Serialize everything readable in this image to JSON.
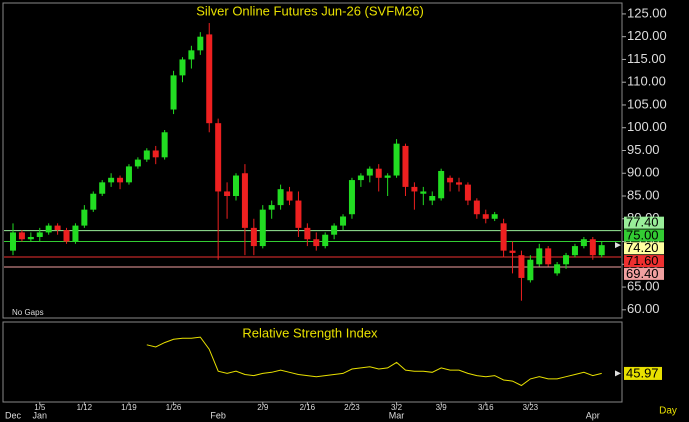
{
  "chart_data": {
    "type": "candlestick",
    "title": "Silver Online Futures Jun-26 (SVFM26)",
    "annotation": "No Gaps",
    "x_unit": "Day",
    "categories": [
      null,
      null,
      null,
      "1/5",
      null,
      null,
      null,
      null,
      "1/12",
      null,
      null,
      null,
      null,
      "1/19",
      null,
      null,
      null,
      null,
      "1/26",
      null,
      null,
      null,
      null,
      null,
      null,
      null,
      null,
      null,
      "2/9",
      null,
      null,
      null,
      null,
      "2/16",
      null,
      null,
      null,
      null,
      "2/23",
      null,
      null,
      null,
      null,
      "3/2",
      null,
      null,
      null,
      null,
      "3/9",
      null,
      null,
      null,
      null,
      "3/16",
      null,
      null,
      null,
      null,
      "3/23",
      null,
      null,
      null,
      null,
      null,
      null,
      null,
      null
    ],
    "months": [
      "Dec",
      null,
      null,
      "Jan",
      null,
      null,
      null,
      null,
      null,
      null,
      null,
      null,
      null,
      null,
      null,
      null,
      null,
      null,
      null,
      null,
      null,
      null,
      null,
      "Feb",
      null,
      null,
      null,
      null,
      null,
      null,
      null,
      null,
      null,
      null,
      null,
      null,
      null,
      null,
      null,
      null,
      null,
      null,
      null,
      "Mar",
      null,
      null,
      null,
      null,
      null,
      null,
      null,
      null,
      null,
      null,
      null,
      null,
      null,
      null,
      null,
      null,
      null,
      null,
      null,
      null,
      null,
      "Apr",
      null
    ],
    "open": [
      73,
      77,
      75.5,
      76,
      77,
      78.5,
      77.5,
      75,
      78.5,
      82,
      85.5,
      88,
      89,
      88,
      91.5,
      93,
      95,
      93.5,
      104,
      111.5,
      115,
      117,
      120.5,
      101,
      86,
      85,
      90,
      78,
      74,
      82,
      83,
      86,
      84,
      78,
      75.5,
      74,
      76.5,
      78.5,
      81,
      88.5,
      89.5,
      91,
      89,
      89.5,
      96,
      87,
      85.5,
      84,
      84.5,
      89,
      88,
      87.5,
      84,
      81,
      80,
      79,
      73,
      72,
      66.5,
      70,
      73.5,
      68,
      70,
      72,
      74,
      75.5,
      72
    ],
    "high": [
      79,
      77.5,
      77,
      78,
      79,
      79,
      78,
      79,
      83,
      86,
      88.5,
      90,
      89.5,
      92,
      93.5,
      95.5,
      96,
      99.5,
      112.5,
      115.5,
      118,
      121,
      123,
      102,
      88,
      90,
      92,
      80,
      83,
      84,
      87.5,
      87,
      86,
      79,
      77,
      77,
      79,
      81,
      89,
      90,
      91.5,
      92,
      90,
      97.5,
      96.5,
      88,
      87,
      86,
      91,
      89.5,
      89,
      88,
      84.5,
      82,
      81.5,
      80,
      75,
      73,
      72,
      74.5,
      74,
      70.5,
      72.5,
      74.5,
      76,
      76,
      75
    ],
    "low": [
      72,
      75,
      75,
      75,
      76.5,
      76.5,
      74.5,
      74.5,
      78,
      81.5,
      85,
      87,
      86.5,
      87.5,
      91,
      92.5,
      92,
      93,
      103,
      110,
      113,
      116,
      99,
      71,
      80,
      84,
      72,
      72,
      73.5,
      80,
      82,
      83,
      76,
      74,
      73,
      73.5,
      75.5,
      77.5,
      80,
      87,
      88,
      86,
      85,
      89,
      85,
      82,
      83,
      83,
      84,
      86,
      86,
      83,
      80,
      79,
      79.5,
      71.5,
      68,
      62,
      66,
      69.5,
      69.5,
      67.5,
      69,
      71.5,
      73.5,
      71,
      71.5
    ],
    "close": [
      77,
      75.5,
      76,
      77,
      78.5,
      77.5,
      75,
      78.5,
      82,
      85.5,
      88,
      89,
      88,
      91.5,
      93,
      95,
      93.5,
      99,
      111.5,
      115,
      117,
      120,
      101,
      86,
      85,
      89.5,
      78,
      74,
      82,
      83,
      86.5,
      84,
      78,
      75.5,
      74,
      76.5,
      78.5,
      80.5,
      88.5,
      89.5,
      91,
      89,
      89.5,
      96.5,
      87,
      86,
      86,
      85,
      90.5,
      88,
      87.5,
      84,
      81,
      80,
      81,
      73,
      72.5,
      67,
      71,
      73.5,
      70,
      70,
      72,
      74,
      75.5,
      72,
      74.2
    ],
    "up_color": "#22dd22",
    "down_color": "#ee2020",
    "ylim": [
      58.2,
      127.4
    ],
    "yticks": [
      {
        "value": 60,
        "label": "60.00"
      },
      {
        "value": 65,
        "label": "65.00"
      },
      {
        "value": 70,
        "label": "70.00"
      },
      {
        "value": 75,
        "label": "75.00"
      },
      {
        "value": 80,
        "label": "80.00"
      },
      {
        "value": 85,
        "label": "85.00"
      },
      {
        "value": 90,
        "label": "90.00"
      },
      {
        "value": 95,
        "label": "95.00"
      },
      {
        "value": 100,
        "label": "100.00"
      },
      {
        "value": 105,
        "label": "105.00"
      },
      {
        "value": 110,
        "label": "110.00"
      },
      {
        "value": 115,
        "label": "115.00"
      },
      {
        "value": 120,
        "label": "120.00"
      },
      {
        "value": 125,
        "label": "125.00"
      }
    ],
    "levels": [
      {
        "value": 77.4,
        "label": "77.40",
        "color": "#99ee99"
      },
      {
        "value": 75,
        "label": "75.00",
        "color": "#33cc33"
      },
      {
        "value": 71.6,
        "label": "71.60",
        "color": "#ee3030"
      },
      {
        "value": 69.4,
        "label": "69.40",
        "color": "#f0a0a0"
      }
    ],
    "last": {
      "value": 74.2,
      "label": "74.20",
      "color": "#ffffa0"
    },
    "indicator": {
      "title": "Relative Strength Index",
      "color": "#e8e000",
      "ylim": [
        20,
        90
      ],
      "values": [
        null,
        null,
        null,
        null,
        null,
        null,
        null,
        null,
        null,
        null,
        null,
        null,
        null,
        null,
        null,
        72,
        70,
        74,
        77,
        78,
        78,
        79,
        68,
        48,
        46,
        48,
        45,
        44,
        46,
        47,
        49,
        47,
        45,
        44,
        43,
        44,
        45,
        46,
        50,
        51,
        52,
        50,
        51,
        56,
        49,
        48,
        48,
        47,
        51,
        49,
        49,
        46,
        44,
        43,
        44,
        40,
        39,
        35,
        41,
        43,
        41,
        41,
        43,
        45,
        47,
        44,
        45.97
      ]
    }
  }
}
